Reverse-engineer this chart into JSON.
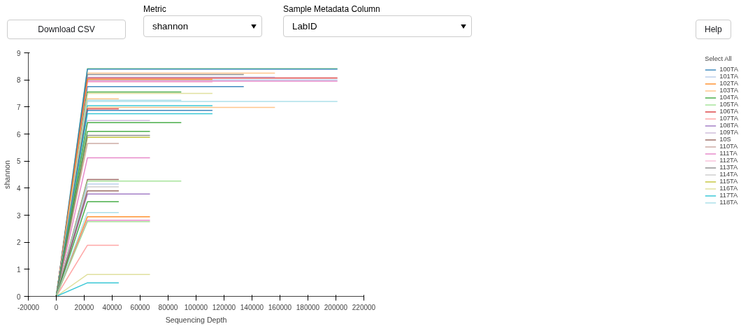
{
  "chart_data": {
    "type": "line",
    "xlabel": "Sequencing Depth",
    "ylabel": "shannon",
    "legend_title": "Select All",
    "annotations": [
      "Download CSV",
      "Metric",
      "shannon",
      "Sample Metadata Column",
      "LabID",
      "Help"
    ],
    "x": [
      0,
      22300,
      44700,
      67000,
      89400,
      111700,
      134100,
      156400,
      178800,
      201100
    ],
    "xlim": [
      -20000,
      220000
    ],
    "xticks": [
      -20000,
      0,
      20000,
      40000,
      60000,
      80000,
      100000,
      120000,
      140000,
      160000,
      180000,
      200000,
      220000
    ],
    "ylim": [
      0,
      9
    ],
    "yticks": [
      0,
      1,
      2,
      3,
      4,
      5,
      6,
      7,
      8,
      9
    ],
    "grid": false,
    "legend": "right",
    "marker": "none",
    "line_style": "solid",
    "series": [
      {
        "name": "100TA",
        "color": "#1f77b4",
        "values": [
          0,
          7.75,
          7.75,
          7.75,
          7.75,
          7.75,
          7.75,
          null,
          null,
          null
        ]
      },
      {
        "name": "101TA",
        "color": "#aec7e8",
        "values": [
          0,
          8.0,
          8.0,
          8.0,
          8.0,
          8.0,
          8.0,
          8.0,
          8.0,
          8.0
        ]
      },
      {
        "name": "102TA",
        "color": "#ff7f0e",
        "values": [
          0,
          2.94,
          2.94,
          2.94,
          null,
          null,
          null,
          null,
          null,
          null
        ]
      },
      {
        "name": "103TA",
        "color": "#ffbb78",
        "values": [
          0,
          8.25,
          8.25,
          8.25,
          8.25,
          8.25,
          8.25,
          8.25,
          null,
          null
        ]
      },
      {
        "name": "104TA",
        "color": "#2ca02c",
        "values": [
          0,
          7.55,
          7.55,
          7.55,
          7.55,
          null,
          null,
          null,
          null,
          null
        ]
      },
      {
        "name": "105TA",
        "color": "#98df8a",
        "values": [
          0,
          8.42,
          8.42,
          8.42,
          8.42,
          8.42,
          8.42,
          8.42,
          8.42,
          8.42
        ]
      },
      {
        "name": "106TA",
        "color": "#d62728",
        "values": [
          0,
          8.07,
          8.07,
          8.07,
          8.07,
          8.07,
          8.07,
          8.07,
          8.07,
          8.07
        ]
      },
      {
        "name": "107TA",
        "color": "#ff9896",
        "values": [
          0,
          1.89,
          1.89,
          null,
          null,
          null,
          null,
          null,
          null,
          null
        ]
      },
      {
        "name": "108TA",
        "color": "#9467bd",
        "values": [
          0,
          3.78,
          3.78,
          3.78,
          null,
          null,
          null,
          null,
          null,
          null
        ]
      },
      {
        "name": "109TA",
        "color": "#c5b0d5",
        "values": [
          0,
          8.1,
          8.1,
          8.1,
          8.1,
          8.1,
          8.1,
          8.1,
          null,
          null
        ]
      },
      {
        "name": "10S",
        "color": "#8c564b",
        "values": [
          0,
          4.32,
          4.32,
          null,
          null,
          null,
          null,
          null,
          null,
          null
        ]
      },
      {
        "name": "110TA",
        "color": "#c49c94",
        "values": [
          0,
          5.65,
          5.65,
          null,
          null,
          null,
          null,
          null,
          null,
          null
        ]
      },
      {
        "name": "111TA",
        "color": "#e377c2",
        "values": [
          0,
          5.12,
          5.12,
          5.12,
          null,
          null,
          null,
          null,
          null,
          null
        ]
      },
      {
        "name": "112TA",
        "color": "#f7b6d2",
        "values": [
          0,
          7.92,
          7.92,
          7.92,
          7.92,
          7.92,
          null,
          null,
          null,
          null
        ]
      },
      {
        "name": "113TA",
        "color": "#7f7f7f",
        "values": [
          0,
          8.2,
          8.2,
          8.2,
          8.2,
          8.2,
          8.2,
          null,
          null,
          null
        ]
      },
      {
        "name": "114TA",
        "color": "#c7c7c7",
        "values": [
          0,
          4.05,
          4.05,
          null,
          null,
          null,
          null,
          null,
          null,
          null
        ]
      },
      {
        "name": "115TA",
        "color": "#bcbd22",
        "values": [
          0,
          5.88,
          5.88,
          5.88,
          null,
          null,
          null,
          null,
          null,
          null
        ]
      },
      {
        "name": "116TA",
        "color": "#dbdb8d",
        "values": [
          0,
          0.81,
          0.81,
          0.81,
          null,
          null,
          null,
          null,
          null,
          null
        ]
      },
      {
        "name": "117TA",
        "color": "#17becf",
        "values": [
          0,
          0.5,
          0.5,
          null,
          null,
          null,
          null,
          null,
          null,
          null
        ]
      },
      {
        "name": "118TA",
        "color": "#9edae5",
        "values": [
          0,
          7.2,
          7.2,
          7.2,
          7.2,
          7.2,
          7.2,
          7.2,
          7.2,
          7.2
        ]
      },
      {
        "color": "#1f77b4",
        "values": [
          0,
          8.4,
          8.4,
          8.4,
          8.4,
          8.4,
          8.4,
          8.4,
          8.4,
          8.4
        ]
      },
      {
        "color": "#e377c2",
        "values": [
          0,
          7.95,
          7.95,
          7.95,
          7.95,
          7.95,
          7.95,
          7.95,
          7.95,
          7.95
        ]
      },
      {
        "color": "#ff7f0e",
        "values": [
          0,
          8.02,
          8.02,
          8.02,
          8.02,
          8.02,
          null,
          null,
          null,
          null
        ]
      },
      {
        "color": "#dbdb8d",
        "values": [
          0,
          7.5,
          7.5,
          7.5,
          7.5,
          7.5,
          null,
          null,
          null,
          null
        ]
      },
      {
        "color": "#ffbb78",
        "values": [
          0,
          7.3,
          7.3,
          null,
          null,
          null,
          null,
          null,
          null,
          null
        ]
      },
      {
        "color": "#9edae5",
        "values": [
          0,
          7.25,
          7.25,
          7.25,
          7.25,
          null,
          null,
          null,
          null,
          null
        ]
      },
      {
        "color": "#17becf",
        "values": [
          0,
          7.05,
          7.05,
          7.05,
          7.05,
          7.05,
          null,
          null,
          null,
          null
        ]
      },
      {
        "color": "#ffbb78",
        "values": [
          0,
          6.98,
          6.98,
          6.98,
          6.98,
          6.98,
          6.98,
          6.98,
          null,
          null
        ]
      },
      {
        "color": "#d62728",
        "values": [
          0,
          6.93,
          6.93,
          null,
          null,
          null,
          null,
          null,
          null,
          null
        ]
      },
      {
        "color": "#1f77b4",
        "values": [
          0,
          6.87,
          6.87,
          6.87,
          6.87,
          6.87,
          null,
          null,
          null,
          null
        ]
      },
      {
        "color": "#17becf",
        "values": [
          0,
          6.75,
          6.75,
          6.75,
          6.75,
          6.75,
          null,
          null,
          null,
          null
        ]
      },
      {
        "color": "#c5b0d5",
        "values": [
          0,
          6.5,
          6.5,
          6.5,
          null,
          null,
          null,
          null,
          null,
          null
        ]
      },
      {
        "color": "#2ca02c",
        "values": [
          0,
          6.42,
          6.42,
          6.42,
          6.42,
          null,
          null,
          null,
          null,
          null
        ]
      },
      {
        "color": "#2ca02c",
        "values": [
          0,
          6.1,
          6.1,
          6.1,
          null,
          null,
          null,
          null,
          null,
          null
        ]
      },
      {
        "color": "#7f7f7f",
        "values": [
          0,
          5.95,
          5.95,
          5.95,
          null,
          null,
          null,
          null,
          null,
          null
        ]
      },
      {
        "color": "#98df8a",
        "values": [
          0,
          4.26,
          4.26,
          4.26,
          4.26,
          null,
          null,
          null,
          null,
          null
        ]
      },
      {
        "color": "#aec7e8",
        "values": [
          0,
          4.15,
          4.15,
          null,
          null,
          null,
          null,
          null,
          null,
          null
        ]
      },
      {
        "color": "#8c564b",
        "values": [
          0,
          3.9,
          3.9,
          null,
          null,
          null,
          null,
          null,
          null,
          null
        ]
      },
      {
        "color": "#2ca02c",
        "values": [
          0,
          3.5,
          3.5,
          null,
          null,
          null,
          null,
          null,
          null,
          null
        ]
      },
      {
        "color": "#9edae5",
        "values": [
          0,
          3.1,
          3.1,
          null,
          null,
          null,
          null,
          null,
          null,
          null
        ]
      },
      {
        "color": "#e377c2",
        "values": [
          0,
          2.81,
          2.81,
          2.81,
          null,
          null,
          null,
          null,
          null,
          null
        ]
      },
      {
        "color": "#98df8a",
        "values": [
          0,
          2.76,
          2.76,
          2.76,
          null,
          null,
          null,
          null,
          null,
          null
        ]
      }
    ]
  }
}
